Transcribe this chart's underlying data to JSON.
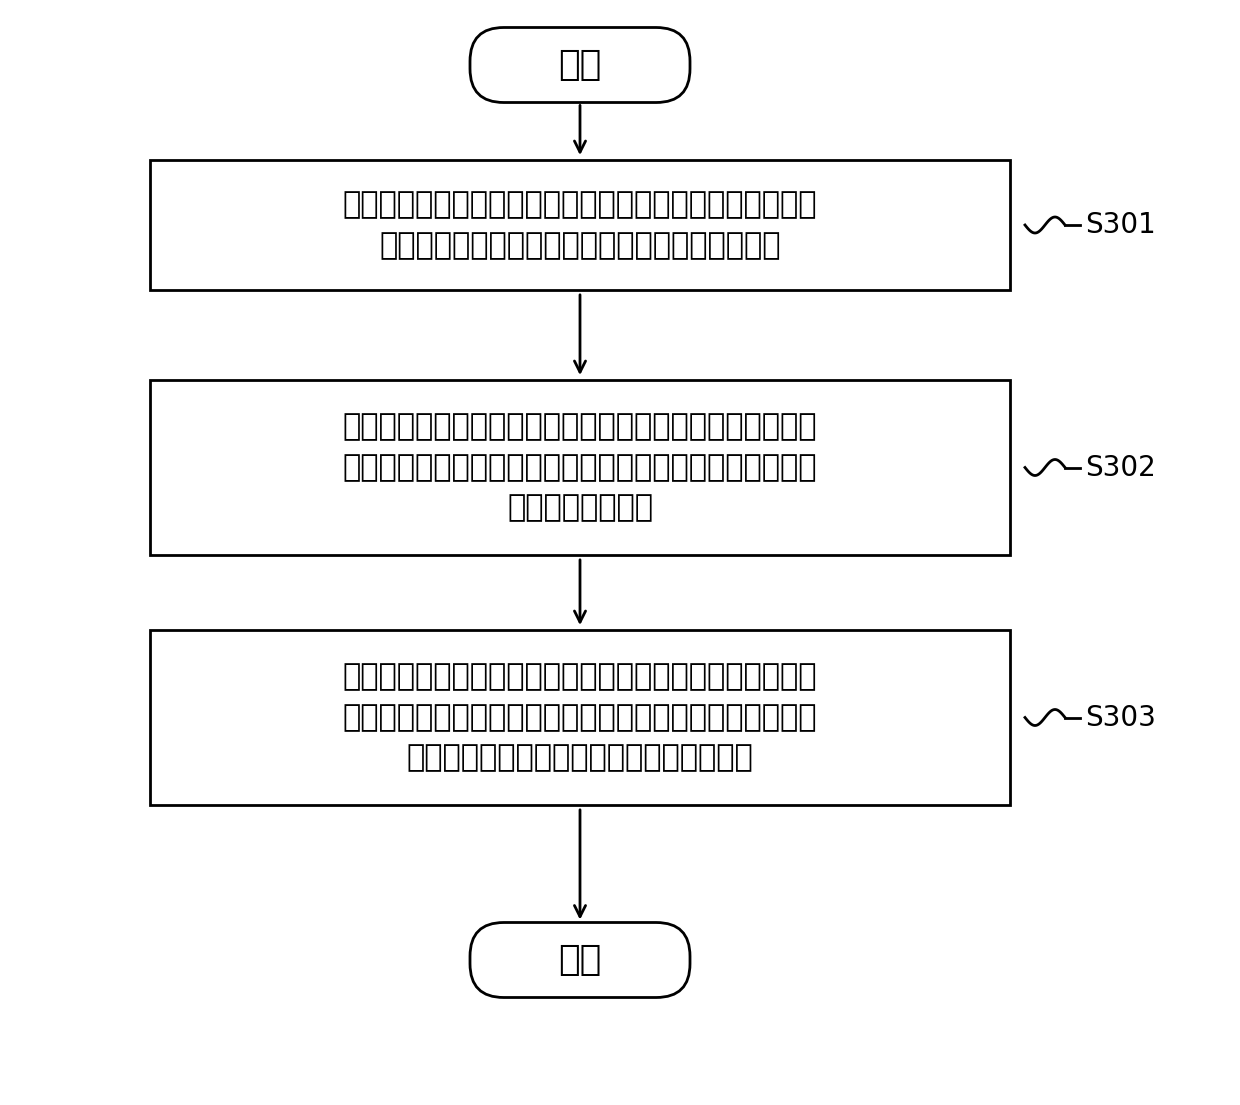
{
  "bg_color": "#ffffff",
  "line_color": "#000000",
  "text_color": "#000000",
  "start_text": "开始",
  "end_text": "结束",
  "box1_text": "对各部件进行仿真模态计算，并根据各部件的实际模态参数\n以及仿真模态参数对各部件的有限元模型进行修正",
  "box2_text": "建立各组件的有限元模型，对各组件进行仿真模态计算，并\n根据各组件的实际模态参数以及仿真模态参数对各组件的有\n限元模型进行修正",
  "box3_text": "建立直驱式发电机系统的有限元模型，对直驱式发电机系统\n进行仿真模态计算，根据直驱式发电机系统的实际模态参数\n以及仿真模态参数对其有限元模型进行修正",
  "label1": "S301",
  "label2": "S302",
  "label3": "S303",
  "font_size_main": 22,
  "font_size_label": 20,
  "font_size_terminal": 26
}
